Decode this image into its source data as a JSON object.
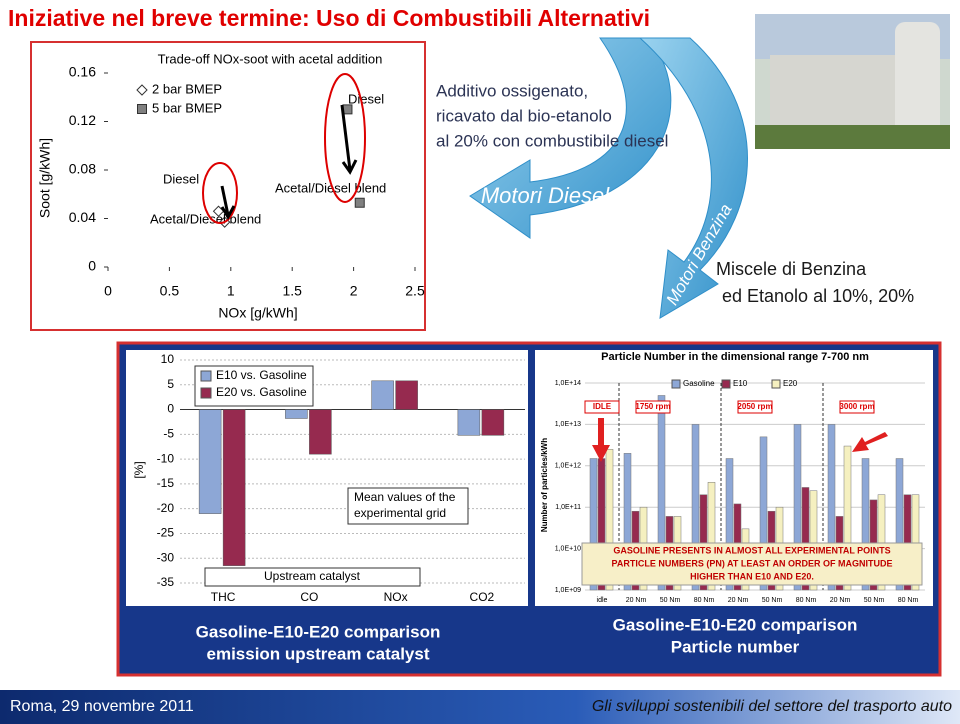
{
  "header": {
    "title": "Iniziative nel breve termine: Uso di Combustibili Alternativi"
  },
  "callouts": {
    "diesel_text": [
      "Additivo ossigenato,",
      "ricavato dal bio-etanolo",
      "al 20% con combustibile diesel"
    ],
    "diesel_arrow": "Motori Diesel",
    "petrol_arrow": "Motori Benzina",
    "petrol_text": [
      "Miscele di Benzina",
      "ed Etanolo al 10%, 20%"
    ]
  },
  "chart_data": [
    {
      "type": "scatter",
      "title": "Trade-off NOx-soot with acetal addition",
      "x_label": "NOx [g/kWh]",
      "y_label": "Soot [g/kWh]",
      "xlim": [
        0,
        2.5
      ],
      "xticks": [
        0,
        0.5,
        1,
        1.5,
        2,
        2.5
      ],
      "ylim": [
        0,
        0.16
      ],
      "yticks": [
        0,
        0.04,
        0.08,
        0.12,
        0.16
      ],
      "series": [
        {
          "name": "2 bar BMEP",
          "marker": "diamond",
          "color": "#ffffff",
          "x": [
            0.9,
            0.95
          ],
          "values": [
            0.046,
            0.037
          ]
        },
        {
          "name": "5 bar BMEP",
          "marker": "square",
          "color": "#808080",
          "x": [
            1.95,
            2.05
          ],
          "values": [
            0.13,
            0.053
          ]
        }
      ],
      "annotations": [
        "Diesel",
        "Acetal/Diesel blend",
        "Diesel",
        "Acetal/Diesel blend"
      ]
    },
    {
      "type": "bar",
      "y_label": "[%]",
      "categories": [
        "THC",
        "CO",
        "NOx",
        "CO2"
      ],
      "series": [
        {
          "name": "E10 vs. Gasoline",
          "color": "#8da7d6",
          "values": [
            -21,
            -1.8,
            5.8,
            -5.2
          ]
        },
        {
          "name": "E20 vs. Gasoline",
          "color": "#962a4f",
          "values": [
            -31.5,
            -9,
            5.8,
            -5.2
          ]
        }
      ],
      "ylim": [
        -35,
        10
      ],
      "yticks": [
        -35,
        -30,
        -25,
        -20,
        -15,
        -10,
        -5,
        0,
        5,
        10
      ],
      "notes": [
        "Mean values of the",
        "experimental grid"
      ],
      "box_label": "Upstream catalyst",
      "caption": [
        "Gasoline-E10-E20 comparison",
        "emission upstream catalyst"
      ]
    },
    {
      "type": "logbar",
      "title": "Particle Number in the dimensional range 7-700 nm",
      "y_label": "Number of particles/kWh",
      "log_scale": true,
      "categories": [
        "idle",
        "20 Nm",
        "50 Nm",
        "80 Nm",
        "20 Nm",
        "50 Nm",
        "80 Nm",
        "20 Nm",
        "50 Nm",
        "80 Nm"
      ],
      "groups": [
        "IDLE",
        "1750 rpm",
        "2050 rpm",
        "3000 rpm"
      ],
      "series": [
        {
          "name": "Gasoline",
          "color": "#8da7d6",
          "values": [
            1500000000000,
            2000000000000,
            50000000000000,
            10000000000000,
            1500000000000,
            5000000000000,
            10000000000000,
            10000000000000,
            1500000000000,
            1500000000000
          ]
        },
        {
          "name": "E10",
          "color": "#962a4f",
          "values": [
            1500000000000,
            80000000000,
            60000000000,
            200000000000,
            120000000000,
            80000000000,
            300000000000,
            60000000000,
            150000000000,
            200000000000
          ]
        },
        {
          "name": "E20",
          "color": "#f5f0c0",
          "values": [
            2500000000000,
            100000000000,
            60000000000,
            400000000000,
            30000000000,
            100000000000,
            250000000000,
            3000000000000,
            200000000000,
            200000000000
          ]
        }
      ],
      "ylim": [
        1000000000,
        100000000000000
      ],
      "yticks": [
        {
          "value": 1000000000,
          "label": "1,0E+09"
        },
        {
          "value": 10000000000,
          "label": "1,0E+10"
        },
        {
          "value": 100000000000,
          "label": "1,0E+11"
        },
        {
          "value": 1000000000000,
          "label": "1,0E+12"
        },
        {
          "value": 10000000000000,
          "label": "1,0E+13"
        },
        {
          "value": 100000000000000,
          "label": "1,0E+14"
        }
      ],
      "notes": [
        "GASOLINE PRESENTS IN ALMOST ALL EXPERIMENTAL POINTS",
        "PARTICLE NUMBERS (PN) AT LEAST AN ORDER OF MAGNITUDE",
        "HIGHER THAN E10 AND E20."
      ],
      "caption": [
        "Gasoline-E10-E20 comparison",
        "Particle number"
      ]
    }
  ],
  "footer": {
    "left": "Roma, 29 novembre 2011",
    "right": "Gli sviluppi sostenibili del settore del trasporto auto"
  }
}
